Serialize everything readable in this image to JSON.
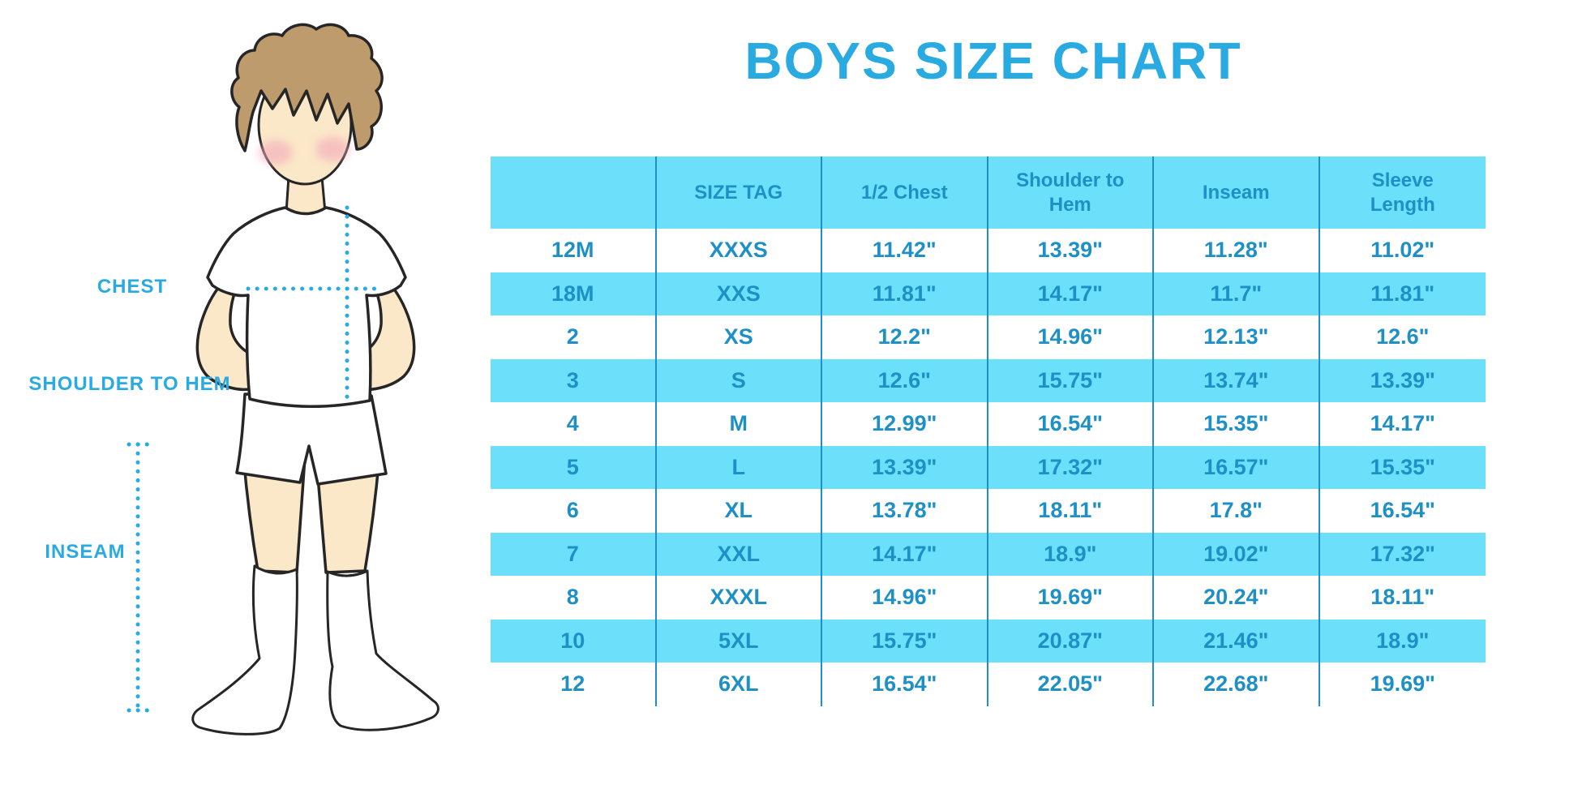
{
  "page": {
    "title": "BOYS SIZE CHART"
  },
  "illustration": {
    "name": "boy-body-measurement-figure",
    "labels": {
      "chest": "CHEST",
      "shoulder_to_hem": "SHOULDER TO HEM",
      "inseam": "INSEAM"
    }
  },
  "colors": {
    "title_blue": "#29ABE2",
    "label_blue": "#29ABE2",
    "table_text_blue": "#1E90C6",
    "divider_blue": "#1E90C6",
    "stripe_cyan": "#6CE0FB",
    "dotted_line_blue": "#29ABE2",
    "hair_brown": "#BD9B6D",
    "skin_tone": "#FBE8C8",
    "blush_pink": "#F3A9BC",
    "outline_dark": "#262626"
  },
  "chart_data": {
    "type": "table",
    "title": "BOYS SIZE CHART",
    "columns": [
      "",
      "SIZE TAG",
      "1/2 Chest",
      "Shoulder to Hem",
      "Inseam",
      "Sleeve Length"
    ],
    "rows": [
      [
        "12M",
        "XXXS",
        "11.42\"",
        "13.39\"",
        "11.28\"",
        "11.02\""
      ],
      [
        "18M",
        "XXS",
        "11.81\"",
        "14.17\"",
        "11.7\"",
        "11.81\""
      ],
      [
        "2",
        "XS",
        "12.2\"",
        "14.96\"",
        "12.13\"",
        "12.6\""
      ],
      [
        "3",
        "S",
        "12.6\"",
        "15.75\"",
        "13.74\"",
        "13.39\""
      ],
      [
        "4",
        "M",
        "12.99\"",
        "16.54\"",
        "15.35\"",
        "14.17\""
      ],
      [
        "5",
        "L",
        "13.39\"",
        "17.32\"",
        "16.57\"",
        "15.35\""
      ],
      [
        "6",
        "XL",
        "13.78\"",
        "18.11\"",
        "17.8\"",
        "16.54\""
      ],
      [
        "7",
        "XXL",
        "14.17\"",
        "18.9\"",
        "19.02\"",
        "17.32\""
      ],
      [
        "8",
        "XXXL",
        "14.96\"",
        "19.69\"",
        "20.24\"",
        "18.11\""
      ],
      [
        "10",
        "5XL",
        "15.75\"",
        "20.87\"",
        "21.46\"",
        "18.9\""
      ],
      [
        "12",
        "6XL",
        "16.54\"",
        "22.05\"",
        "22.68\"",
        "19.69\""
      ]
    ],
    "units": "inches",
    "layout": {
      "striping": "alternating white and cyan rows",
      "grid": "vertical dividers only"
    }
  }
}
